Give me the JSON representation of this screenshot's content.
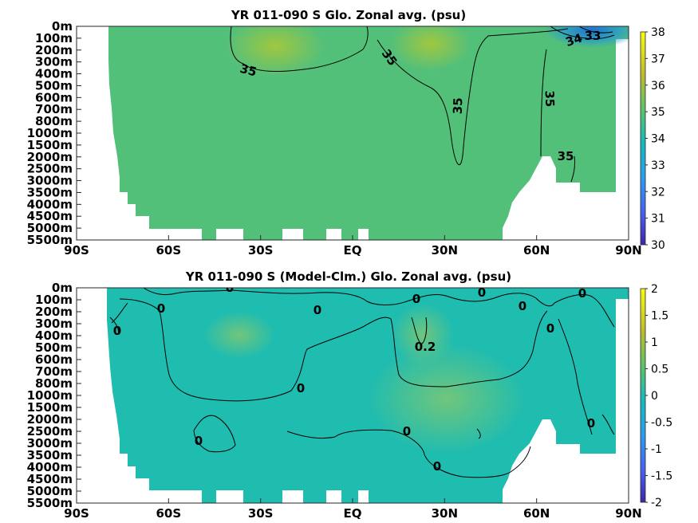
{
  "chart_data": [
    {
      "type": "heatmap",
      "title": "YR 011-090 S Glo. Zonal avg. (psu)",
      "x_ticks": [
        "90S",
        "60S",
        "30S",
        "EQ",
        "30N",
        "60N",
        "90N"
      ],
      "x_values": [
        -90,
        -60,
        -30,
        0,
        30,
        60,
        90
      ],
      "y_ticks": [
        "0m",
        "100m",
        "200m",
        "300m",
        "400m",
        "500m",
        "600m",
        "700m",
        "800m",
        "1000m",
        "1500m",
        "2000m",
        "2500m",
        "3000m",
        "3500m",
        "4000m",
        "4500m",
        "5000m",
        "5500m"
      ],
      "colorbar": {
        "min": 30,
        "max": 38,
        "ticks": [
          "30",
          "31",
          "32",
          "33",
          "34",
          "35",
          "36",
          "37",
          "38"
        ]
      },
      "contour_labels": [
        "35",
        "35",
        "35",
        "35",
        "35",
        "34",
        "33"
      ],
      "colors": {
        "background": "#53c07a",
        "high": "#a6c83a",
        "low": "#1a78c8"
      }
    },
    {
      "type": "heatmap",
      "title": "YR 011-090 S (Model-Clm.) Glo. Zonal avg. (psu)",
      "x_ticks": [
        "90S",
        "60S",
        "30S",
        "EQ",
        "30N",
        "60N",
        "90N"
      ],
      "x_values": [
        -90,
        -60,
        -30,
        0,
        30,
        60,
        90
      ],
      "y_ticks": [
        "0m",
        "100m",
        "200m",
        "300m",
        "400m",
        "500m",
        "600m",
        "700m",
        "800m",
        "1000m",
        "1500m",
        "2000m",
        "2500m",
        "3000m",
        "3500m",
        "4000m",
        "4500m",
        "5000m",
        "5500m"
      ],
      "colorbar": {
        "min": -2,
        "max": 2,
        "ticks": [
          "-2",
          "-1.5",
          "-1",
          "-0.5",
          "0",
          "0.5",
          "1",
          "1.5",
          "2"
        ]
      },
      "contour_labels": [
        "0",
        "0",
        "0",
        "0",
        "0",
        "0",
        "0",
        "0",
        "0",
        "0",
        "0",
        "0",
        "0.2"
      ],
      "colors": {
        "background": "#1fbcb0",
        "high": "#6cc87c"
      }
    }
  ]
}
